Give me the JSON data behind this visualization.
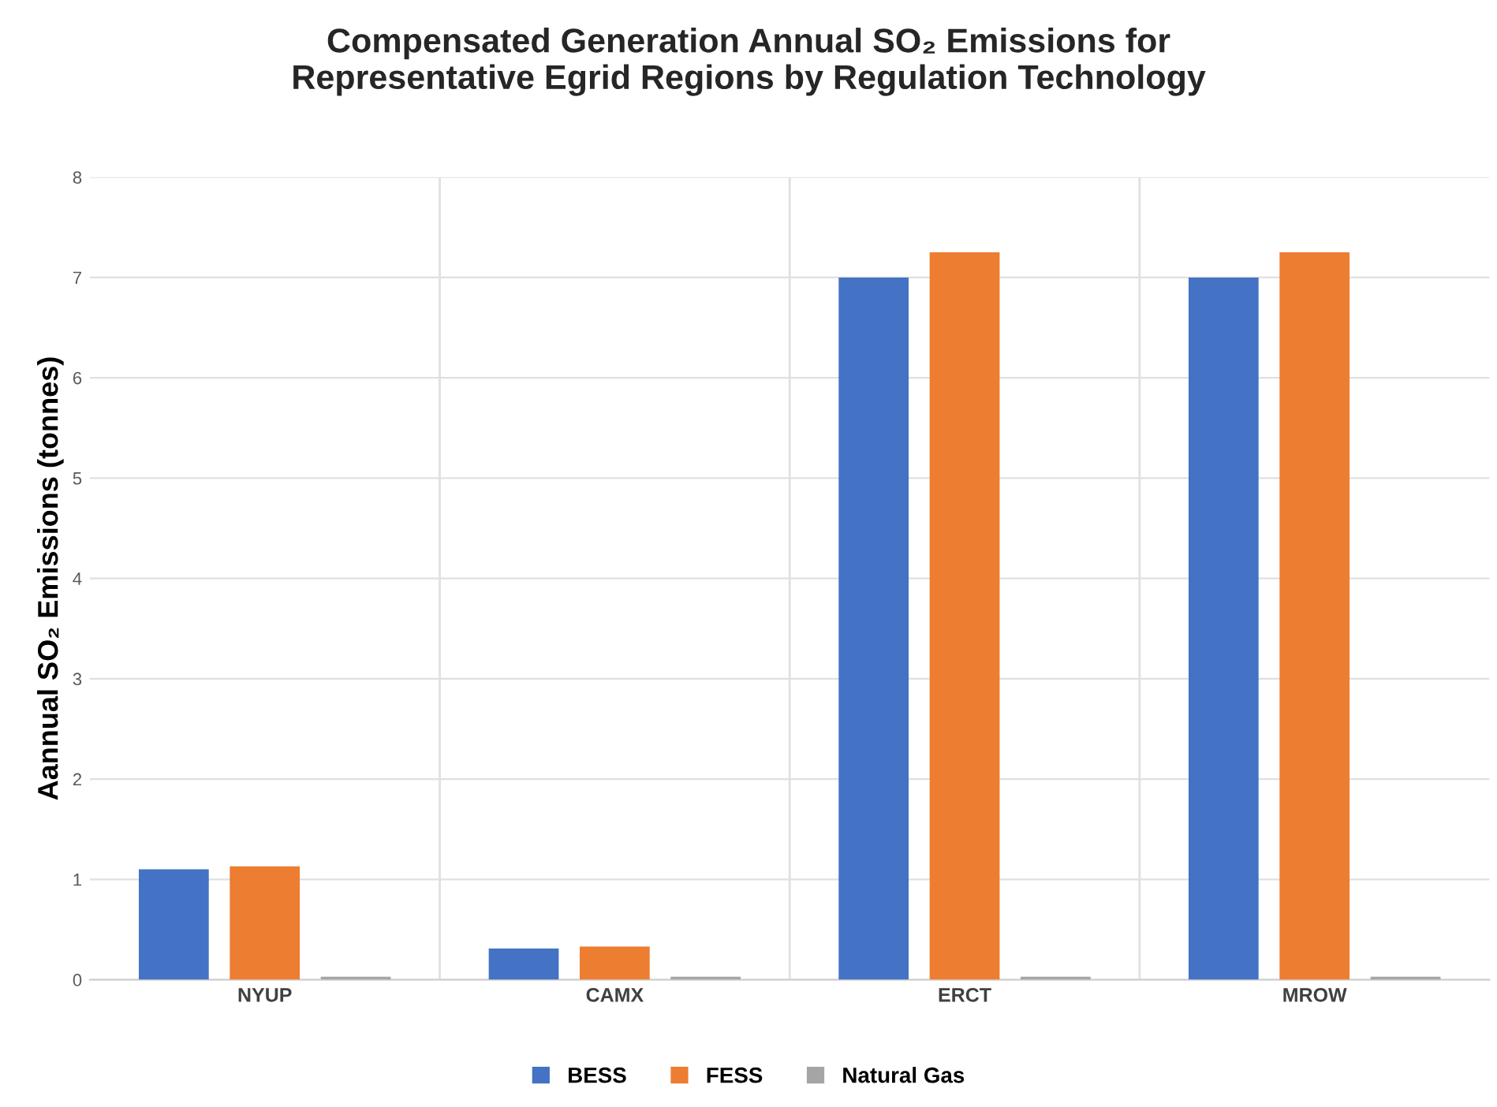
{
  "chart_data": {
    "type": "bar",
    "title": "Compensated Generation Annual SO₂ Emissions for\nRepresentative Egrid Regions by Regulation Technology",
    "ylabel": "Aannual SO₂ Emissions (tonnes)",
    "categories": [
      "NYUP",
      "CAMX",
      "ERCT",
      "MROW"
    ],
    "series": [
      {
        "name": "BESS",
        "color": "#4472c4",
        "values": [
          1.1,
          0.31,
          7.0,
          7.0
        ]
      },
      {
        "name": "FESS",
        "color": "#ed7d31",
        "values": [
          1.13,
          0.33,
          7.25,
          7.25
        ]
      },
      {
        "name": "Natural Gas",
        "color": "#a5a5a5",
        "values": [
          0.03,
          0.03,
          0.03,
          0.03
        ]
      }
    ],
    "ylim": [
      0,
      8
    ],
    "yticks": [
      0,
      1,
      2,
      3,
      4,
      5,
      6,
      7,
      8
    ],
    "grid": true,
    "legend": "bottom"
  }
}
